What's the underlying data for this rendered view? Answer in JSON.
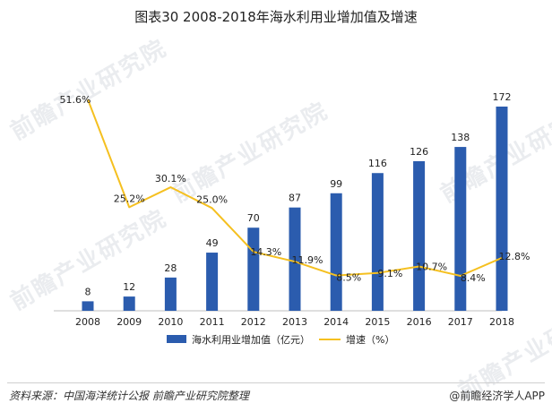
{
  "title": "图表30  2008-2018年海水利用业增加值及增速",
  "watermark": "前瞻产业研究院",
  "chart_data": {
    "type": "bar",
    "categories": [
      "2008",
      "2009",
      "2010",
      "2011",
      "2012",
      "2013",
      "2014",
      "2015",
      "2016",
      "2017",
      "2018"
    ],
    "series": [
      {
        "name": "海水利用业增加值（亿元）",
        "type": "bar",
        "color": "#2b5cae",
        "values": [
          8,
          12,
          28,
          49,
          70,
          87,
          99,
          116,
          126,
          138,
          172
        ]
      },
      {
        "name": "增速（%）",
        "type": "line",
        "color": "#f5c020",
        "values": [
          51.6,
          25.2,
          30.1,
          25.0,
          14.3,
          11.9,
          8.5,
          9.1,
          10.7,
          8.4,
          12.8
        ],
        "labels": [
          "51.6%",
          "25.2%",
          "30.1%",
          "25.0%",
          "14.3%",
          "11.9%",
          "8.5%",
          "9.1%",
          "10.7%",
          "8.4%",
          "12.8%"
        ]
      }
    ],
    "ylim_bar": [
      0,
      180
    ],
    "ylim_line": [
      0,
      60
    ],
    "legend_position": "bottom-center"
  },
  "footer": {
    "source": "资料来源：中国海洋统计公报 前瞻产业研究院整理",
    "brand": "@前瞻经济学人APP"
  }
}
